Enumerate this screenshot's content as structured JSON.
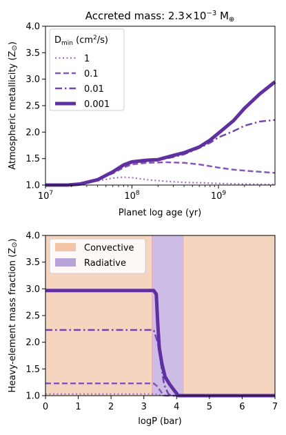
{
  "chart_data": [
    {
      "type": "line",
      "title": "Accreted mass: 2.3×10",
      "title_exp": "−3",
      "title_unit": " M",
      "title_unit_sym": "⊕",
      "xlabel": "Planet log age (yr)",
      "ylabel": "Atmospheric metallicity (Z",
      "ylabel_sym": "⊙",
      "ylabel_end": ")",
      "x_scale": "log",
      "xlim": [
        10000000.0,
        4500000000.0
      ],
      "ylim": [
        1.0,
        4.0
      ],
      "x_ticks": [
        {
          "value": 10000000.0,
          "base": "10",
          "exp": "7"
        },
        {
          "value": 100000000.0,
          "base": "10",
          "exp": "8"
        },
        {
          "value": 1000000000.0,
          "base": "10",
          "exp": "9"
        }
      ],
      "y_ticks": [
        {
          "value": 1.0,
          "label": "1.0"
        },
        {
          "value": 1.5,
          "label": "1.5"
        },
        {
          "value": 2.0,
          "label": "2.0"
        },
        {
          "value": 2.5,
          "label": "2.5"
        },
        {
          "value": 3.0,
          "label": "3.0"
        },
        {
          "value": 3.5,
          "label": "3.5"
        },
        {
          "value": 4.0,
          "label": "4.0"
        }
      ],
      "legend": {
        "placement": "top-left",
        "title_main": "D",
        "title_sub": "min",
        "title_units": " (cm",
        "title_sup": "2",
        "title_end": "/s)"
      },
      "series": [
        {
          "name": "1",
          "color": "#9b6fc6",
          "style": "dotted",
          "points": [
            [
              10000000.0,
              1.0
            ],
            [
              18000000.0,
              1.0
            ],
            [
              25000000.0,
              1.02
            ],
            [
              40000000.0,
              1.08
            ],
            [
              60000000.0,
              1.13
            ],
            [
              80000000.0,
              1.15
            ],
            [
              100000000.0,
              1.14
            ],
            [
              150000000.0,
              1.1
            ],
            [
              250000000.0,
              1.07
            ],
            [
              400000000.0,
              1.05
            ],
            [
              700000000.0,
              1.04
            ],
            [
              1000000000.0,
              1.03
            ],
            [
              2000000000.0,
              1.02
            ],
            [
              4500000000.0,
              1.01
            ]
          ]
        },
        {
          "name": "0.1",
          "color": "#8656b8",
          "style": "dashed",
          "points": [
            [
              10000000.0,
              1.0
            ],
            [
              18000000.0,
              1.0
            ],
            [
              25000000.0,
              1.02
            ],
            [
              40000000.0,
              1.1
            ],
            [
              60000000.0,
              1.22
            ],
            [
              80000000.0,
              1.33
            ],
            [
              100000000.0,
              1.39
            ],
            [
              150000000.0,
              1.42
            ],
            [
              250000000.0,
              1.43
            ],
            [
              400000000.0,
              1.42
            ],
            [
              600000000.0,
              1.39
            ],
            [
              1000000000.0,
              1.33
            ],
            [
              1500000000.0,
              1.29
            ],
            [
              2500000000.0,
              1.26
            ],
            [
              4500000000.0,
              1.23
            ]
          ]
        },
        {
          "name": "0.01",
          "color": "#7443ad",
          "style": "dashdot",
          "points": [
            [
              10000000.0,
              1.0
            ],
            [
              18000000.0,
              1.0
            ],
            [
              25000000.0,
              1.02
            ],
            [
              40000000.0,
              1.1
            ],
            [
              60000000.0,
              1.24
            ],
            [
              80000000.0,
              1.36
            ],
            [
              100000000.0,
              1.42
            ],
            [
              150000000.0,
              1.45
            ],
            [
              200000000.0,
              1.47
            ],
            [
              300000000.0,
              1.53
            ],
            [
              400000000.0,
              1.58
            ],
            [
              600000000.0,
              1.7
            ],
            [
              800000000.0,
              1.8
            ],
            [
              1000000000.0,
              1.9
            ],
            [
              1500000000.0,
              2.02
            ],
            [
              2000000000.0,
              2.12
            ],
            [
              3000000000.0,
              2.2
            ],
            [
              4500000000.0,
              2.23
            ]
          ]
        },
        {
          "name": "0.001",
          "color": "#6030a0",
          "style": "solid-thick",
          "points": [
            [
              10000000.0,
              1.0
            ],
            [
              18000000.0,
              1.0
            ],
            [
              25000000.0,
              1.02
            ],
            [
              40000000.0,
              1.1
            ],
            [
              60000000.0,
              1.25
            ],
            [
              80000000.0,
              1.38
            ],
            [
              100000000.0,
              1.44
            ],
            [
              150000000.0,
              1.47
            ],
            [
              200000000.0,
              1.48
            ],
            [
              300000000.0,
              1.56
            ],
            [
              400000000.0,
              1.61
            ],
            [
              600000000.0,
              1.72
            ],
            [
              800000000.0,
              1.85
            ],
            [
              1000000000.0,
              1.98
            ],
            [
              1500000000.0,
              2.22
            ],
            [
              2000000000.0,
              2.45
            ],
            [
              3000000000.0,
              2.72
            ],
            [
              4500000000.0,
              2.95
            ]
          ]
        }
      ]
    },
    {
      "type": "line",
      "xlabel": "logP (bar)",
      "ylabel": "Heavy-element mass fraction (Z",
      "ylabel_sym": "⊙",
      "ylabel_end": ")",
      "xlim": [
        0,
        7
      ],
      "ylim": [
        1.0,
        4.0
      ],
      "x_ticks": [
        {
          "value": 0,
          "label": "0"
        },
        {
          "value": 1,
          "label": "1"
        },
        {
          "value": 2,
          "label": "2"
        },
        {
          "value": 3,
          "label": "3"
        },
        {
          "value": 4,
          "label": "4"
        },
        {
          "value": 5,
          "label": "5"
        },
        {
          "value": 6,
          "label": "6"
        },
        {
          "value": 7,
          "label": "7"
        }
      ],
      "y_ticks": [
        {
          "value": 1.0,
          "label": "1.0"
        },
        {
          "value": 1.5,
          "label": "1.5"
        },
        {
          "value": 2.0,
          "label": "2.0"
        },
        {
          "value": 2.5,
          "label": "2.5"
        },
        {
          "value": 3.0,
          "label": "3.0"
        },
        {
          "value": 3.5,
          "label": "3.5"
        },
        {
          "value": 4.0,
          "label": "4.0"
        }
      ],
      "regions": [
        {
          "name": "Convective",
          "color": "#f5d5c0",
          "x0": 0,
          "x1": 3.25
        },
        {
          "name": "Radiative",
          "color": "#cdbde6",
          "x0": 3.25,
          "x1": 4.2
        },
        {
          "name": "Convective",
          "color": "#f5d5c0",
          "x0": 4.2,
          "x1": 7
        }
      ],
      "region_edge_color": "#e8b0a8",
      "legend": {
        "placement": "top-left",
        "entries": [
          {
            "label": "Convective",
            "color": "#f0c4a4"
          },
          {
            "label": "Radiative",
            "color": "#b8a2da"
          }
        ]
      },
      "series": [
        {
          "name": "1",
          "color": "#9b6fc6",
          "style": "dotted",
          "points": [
            [
              0,
              1.03
            ],
            [
              3.35,
              1.03
            ],
            [
              3.45,
              1.02
            ],
            [
              3.6,
              1.0
            ],
            [
              7,
              1.0
            ]
          ]
        },
        {
          "name": "0.1",
          "color": "#8656b8",
          "style": "dashed",
          "points": [
            [
              0,
              1.23
            ],
            [
              3.3,
              1.23
            ],
            [
              3.4,
              1.18
            ],
            [
              3.55,
              1.05
            ],
            [
              3.65,
              1.0
            ],
            [
              7,
              1.0
            ]
          ]
        },
        {
          "name": "0.01",
          "color": "#7443ad",
          "style": "dashdot",
          "points": [
            [
              0,
              2.23
            ],
            [
              3.3,
              2.23
            ],
            [
              3.42,
              2.0
            ],
            [
              3.52,
              1.6
            ],
            [
              3.62,
              1.2
            ],
            [
              3.75,
              1.03
            ],
            [
              3.85,
              1.0
            ],
            [
              7,
              1.0
            ]
          ]
        },
        {
          "name": "0.001",
          "color": "#6030a0",
          "style": "solid-thick",
          "points": [
            [
              0,
              2.97
            ],
            [
              3.3,
              2.97
            ],
            [
              3.38,
              2.9
            ],
            [
              3.42,
              2.4
            ],
            [
              3.47,
              1.9
            ],
            [
              3.55,
              1.6
            ],
            [
              3.65,
              1.35
            ],
            [
              3.8,
              1.2
            ],
            [
              3.95,
              1.08
            ],
            [
              4.05,
              1.0
            ],
            [
              7,
              1.0
            ]
          ]
        }
      ]
    }
  ]
}
